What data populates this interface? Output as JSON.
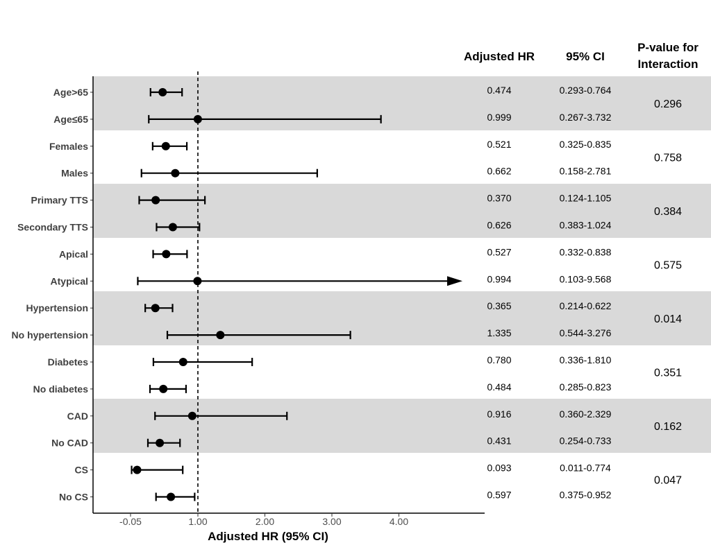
{
  "chart_data": {
    "type": "forest",
    "xlabel": "Adjusted HR (95% CI)",
    "x_ticks": [
      "-0.05",
      "1.00",
      "2.00",
      "3.00",
      "4.00"
    ],
    "reference_line": 1.0,
    "column_headers": {
      "hr": "Adjusted HR",
      "ci": "95% CI",
      "p_line1": "P-value for",
      "p_line2": "Interaction"
    },
    "rows": [
      {
        "label": "Age>65",
        "hr": 0.474,
        "lo": 0.293,
        "hi": 0.764,
        "hr_text": "0.474",
        "ci_text": "0.293-0.764"
      },
      {
        "label": "Age≤65",
        "hr": 0.999,
        "lo": 0.267,
        "hi": 3.732,
        "hr_text": "0.999",
        "ci_text": "0.267-3.732"
      },
      {
        "label": "Females",
        "hr": 0.521,
        "lo": 0.325,
        "hi": 0.835,
        "hr_text": "0.521",
        "ci_text": "0.325-0.835"
      },
      {
        "label": "Males",
        "hr": 0.662,
        "lo": 0.158,
        "hi": 2.781,
        "hr_text": "0.662",
        "ci_text": "0.158-2.781"
      },
      {
        "label": "Primary TTS",
        "hr": 0.37,
        "lo": 0.124,
        "hi": 1.105,
        "hr_text": "0.370",
        "ci_text": "0.124-1.105"
      },
      {
        "label": "Secondary TTS",
        "hr": 0.626,
        "lo": 0.383,
        "hi": 1.024,
        "hr_text": "0.626",
        "ci_text": "0.383-1.024"
      },
      {
        "label": "Apical",
        "hr": 0.527,
        "lo": 0.332,
        "hi": 0.838,
        "hr_text": "0.527",
        "ci_text": "0.332-0.838"
      },
      {
        "label": "Atypical",
        "hr": 0.994,
        "lo": 0.103,
        "hi": 9.568,
        "hr_text": "0.994",
        "ci_text": "0.103-9.568",
        "truncated": true
      },
      {
        "label": "Hypertension",
        "hr": 0.365,
        "lo": 0.214,
        "hi": 0.622,
        "hr_text": "0.365",
        "ci_text": "0.214-0.622"
      },
      {
        "label": "No hypertension",
        "hr": 1.335,
        "lo": 0.544,
        "hi": 3.276,
        "hr_text": "1.335",
        "ci_text": "0.544-3.276"
      },
      {
        "label": "Diabetes",
        "hr": 0.78,
        "lo": 0.336,
        "hi": 1.81,
        "hr_text": "0.780",
        "ci_text": "0.336-1.810"
      },
      {
        "label": "No diabetes",
        "hr": 0.484,
        "lo": 0.285,
        "hi": 0.823,
        "hr_text": "0.484",
        "ci_text": "0.285-0.823"
      },
      {
        "label": "CAD",
        "hr": 0.916,
        "lo": 0.36,
        "hi": 2.329,
        "hr_text": "0.916",
        "ci_text": "0.360-2.329"
      },
      {
        "label": "No CAD",
        "hr": 0.431,
        "lo": 0.254,
        "hi": 0.733,
        "hr_text": "0.431",
        "ci_text": "0.254-0.733"
      },
      {
        "label": "CS",
        "hr": 0.093,
        "lo": 0.011,
        "hi": 0.774,
        "hr_text": "0.093",
        "ci_text": "0.011-0.774"
      },
      {
        "label": "No CS",
        "hr": 0.597,
        "lo": 0.375,
        "hi": 0.952,
        "hr_text": "0.597",
        "ci_text": "0.375-0.952"
      }
    ],
    "groups": [
      {
        "p_value": "0.296",
        "shaded": true
      },
      {
        "p_value": "0.758",
        "shaded": false
      },
      {
        "p_value": "0.384",
        "shaded": true
      },
      {
        "p_value": "0.575",
        "shaded": false
      },
      {
        "p_value": "0.014",
        "shaded": true
      },
      {
        "p_value": "0.351",
        "shaded": false
      },
      {
        "p_value": "0.162",
        "shaded": true
      },
      {
        "p_value": "0.047",
        "shaded": false
      }
    ],
    "colors": {
      "shade": "#d9d9d9",
      "marker": "#000000",
      "axis": "#000000"
    }
  }
}
